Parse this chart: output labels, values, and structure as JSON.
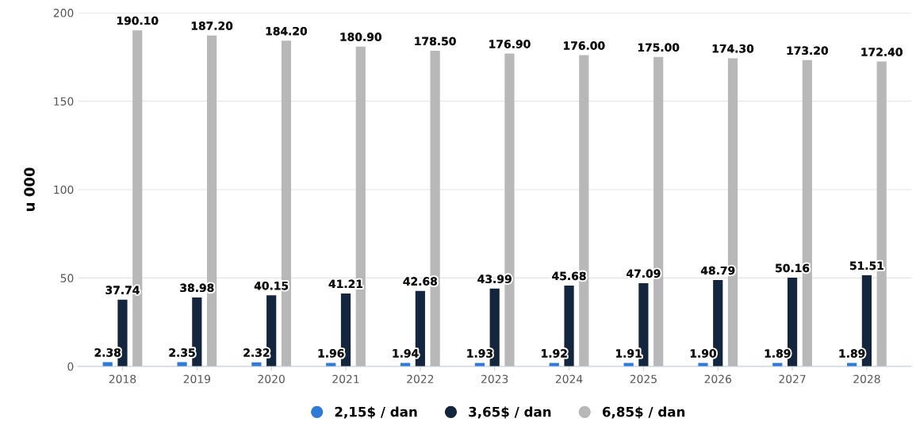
{
  "chart_data": {
    "type": "bar",
    "ylabel": "u 000",
    "categories": [
      "2018",
      "2019",
      "2020",
      "2021",
      "2022",
      "2023",
      "2024",
      "2025",
      "2026",
      "2027",
      "2028"
    ],
    "series": [
      {
        "name": "2,15$ / dan",
        "color": "#2f7ad6",
        "values": [
          2.38,
          2.35,
          2.32,
          1.96,
          1.94,
          1.93,
          1.92,
          1.91,
          1.9,
          1.89,
          1.89
        ],
        "value_labels": [
          "2.38",
          "2.35",
          "2.32",
          "1.96",
          "1.94",
          "1.93",
          "1.92",
          "1.91",
          "1.90",
          "1.89",
          "1.89"
        ]
      },
      {
        "name": "3,65$ / dan",
        "color": "#14263d",
        "values": [
          37.74,
          38.98,
          40.15,
          41.21,
          42.68,
          43.99,
          45.68,
          47.09,
          48.79,
          50.16,
          51.51
        ],
        "value_labels": [
          "37.74",
          "38.98",
          "40.15",
          "41.21",
          "42.68",
          "43.99",
          "45.68",
          "47.09",
          "48.79",
          "50.16",
          "51.51"
        ]
      },
      {
        "name": "6,85$ / dan",
        "color": "#b8b8b8",
        "values": [
          190.1,
          187.2,
          184.2,
          180.9,
          178.5,
          176.9,
          176.0,
          175.0,
          174.3,
          173.2,
          172.4
        ],
        "value_labels": [
          "190.10",
          "187.20",
          "184.20",
          "180.90",
          "178.50",
          "176.90",
          "176.00",
          "175.00",
          "174.30",
          "173.20",
          "172.40"
        ]
      }
    ],
    "ylim": [
      0,
      200
    ],
    "yticks": [
      0,
      50,
      100,
      150,
      200
    ],
    "grid": "y",
    "legend": "bottom"
  }
}
